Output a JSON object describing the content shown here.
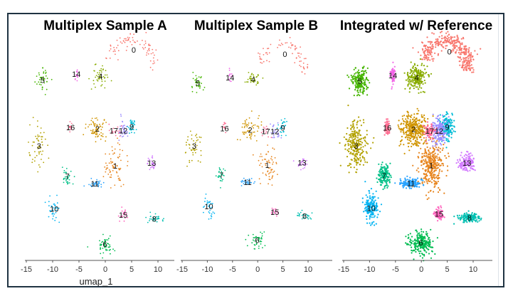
{
  "chart_data": {
    "type": "scatter",
    "xlabel": "umap_1",
    "ylabel": "",
    "xlim": [
      -16,
      14
    ],
    "ylim": [
      -21,
      21
    ],
    "x_ticks": [
      -15,
      -10,
      -5,
      0,
      5,
      10
    ],
    "x_tick_labels": [
      "-15",
      "-10",
      "-5",
      "0",
      "5",
      "10"
    ],
    "grid": false,
    "legend": "none (clusters labeled in place)",
    "panels": [
      {
        "title": "Multiplex Sample A",
        "density": 0.35
      },
      {
        "title": "Multiplex Sample B",
        "density": 0.3
      },
      {
        "title": "Integrated w/ Reference",
        "density": 1.6
      }
    ],
    "clusters": [
      {
        "id": "0",
        "x": 5.4,
        "y": 18.9,
        "sx": 2.6,
        "sy": 3.6,
        "color": "#F8766D",
        "n": 220
      },
      {
        "id": "1",
        "x": 1.9,
        "y": -3.1,
        "sx": 1.6,
        "sy": 3.0,
        "color": "#E7851E",
        "n": 200
      },
      {
        "id": "2",
        "x": -1.5,
        "y": 3.9,
        "sx": 1.8,
        "sy": 2.0,
        "color": "#D09400",
        "n": 200
      },
      {
        "id": "3",
        "x": -12.6,
        "y": 0.7,
        "sx": 1.4,
        "sy": 3.2,
        "color": "#B2A100",
        "n": 150
      },
      {
        "id": "4",
        "x": -0.9,
        "y": 13.9,
        "sx": 1.3,
        "sy": 1.5,
        "color": "#89AC00",
        "n": 130
      },
      {
        "id": "5",
        "x": -11.9,
        "y": 13.2,
        "sx": 1.1,
        "sy": 1.6,
        "color": "#45B500",
        "n": 110
      },
      {
        "id": "6",
        "x": -0.1,
        "y": -18.0,
        "sx": 1.5,
        "sy": 1.4,
        "color": "#00BC51",
        "n": 140
      },
      {
        "id": "7",
        "x": -7.2,
        "y": -5.1,
        "sx": 0.8,
        "sy": 1.5,
        "color": "#00C087",
        "n": 90
      },
      {
        "id": "8",
        "x": 9.3,
        "y": -13.2,
        "sx": 1.3,
        "sy": 0.6,
        "color": "#00C0B2",
        "n": 90
      },
      {
        "id": "9",
        "x": 5.0,
        "y": 4.3,
        "sx": 0.8,
        "sy": 1.6,
        "color": "#00BCD6",
        "n": 100
      },
      {
        "id": "10",
        "x": -9.7,
        "y": -11.3,
        "sx": 1.0,
        "sy": 2.0,
        "color": "#00B3F2",
        "n": 100
      },
      {
        "id": "11",
        "x": -2.0,
        "y": -6.5,
        "sx": 1.4,
        "sy": 0.6,
        "color": "#29A3FF",
        "n": 90
      },
      {
        "id": "12",
        "x": 3.4,
        "y": 3.6,
        "sx": 1.0,
        "sy": 1.6,
        "color": "#9C8DFF",
        "n": 100
      },
      {
        "id": "13",
        "x": 8.8,
        "y": -2.6,
        "sx": 1.0,
        "sy": 1.1,
        "color": "#D277FF",
        "n": 80
      },
      {
        "id": "14",
        "x": -5.5,
        "y": 14.3,
        "sx": 0.3,
        "sy": 1.2,
        "color": "#F265E7",
        "n": 40
      },
      {
        "id": "15",
        "x": 3.4,
        "y": -12.4,
        "sx": 0.7,
        "sy": 0.8,
        "color": "#FF62BC",
        "n": 50
      },
      {
        "id": "16",
        "x": -6.6,
        "y": 4.2,
        "sx": 0.3,
        "sy": 1.1,
        "color": "#FF6C91",
        "n": 40
      },
      {
        "id": "17",
        "x": 1.6,
        "y": 3.6,
        "sx": 0.8,
        "sy": 0.9,
        "color": "#FF6A98",
        "n": 50
      }
    ]
  }
}
